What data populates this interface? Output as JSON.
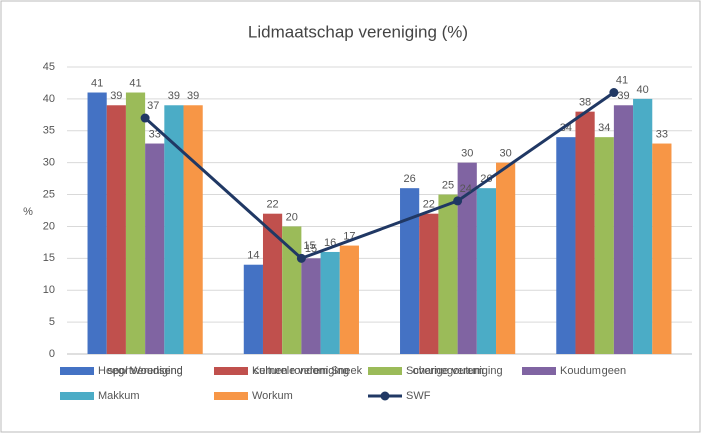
{
  "chart_data": {
    "type": "bar",
    "title": "Lidmaatschap vereniging (%)",
    "y_label": "%",
    "categories": [
      "sportvereniging",
      "culturele vereniging",
      "overige vereniging",
      "geen"
    ],
    "ylim": [
      0,
      45
    ],
    "yticks": [
      0,
      5,
      10,
      15,
      20,
      25,
      30,
      35,
      40,
      45
    ],
    "grid": true,
    "legend": "bottom",
    "series": [
      {
        "name": "Heeg/ Woudsend",
        "color": "#4472c4",
        "values": [
          41,
          14,
          26,
          34
        ]
      },
      {
        "name": "Kernen rondom Sneek",
        "color": "#c0504d",
        "values": [
          39,
          22,
          22,
          38
        ]
      },
      {
        "name": "Scharnegoutum",
        "color": "#9bbb59",
        "values": [
          41,
          20,
          25,
          34
        ]
      },
      {
        "name": "Koudum",
        "color": "#8064a2",
        "values": [
          33,
          15,
          30,
          39
        ]
      },
      {
        "name": "Makkum",
        "color": "#4bacc6",
        "values": [
          39,
          16,
          26,
          40
        ]
      },
      {
        "name": "Workum",
        "color": "#f79646",
        "values": [
          39,
          17,
          30,
          33
        ]
      },
      {
        "name": "SWF",
        "color": "#203864",
        "type": "line",
        "values": [
          37,
          15,
          24,
          41
        ]
      }
    ]
  }
}
